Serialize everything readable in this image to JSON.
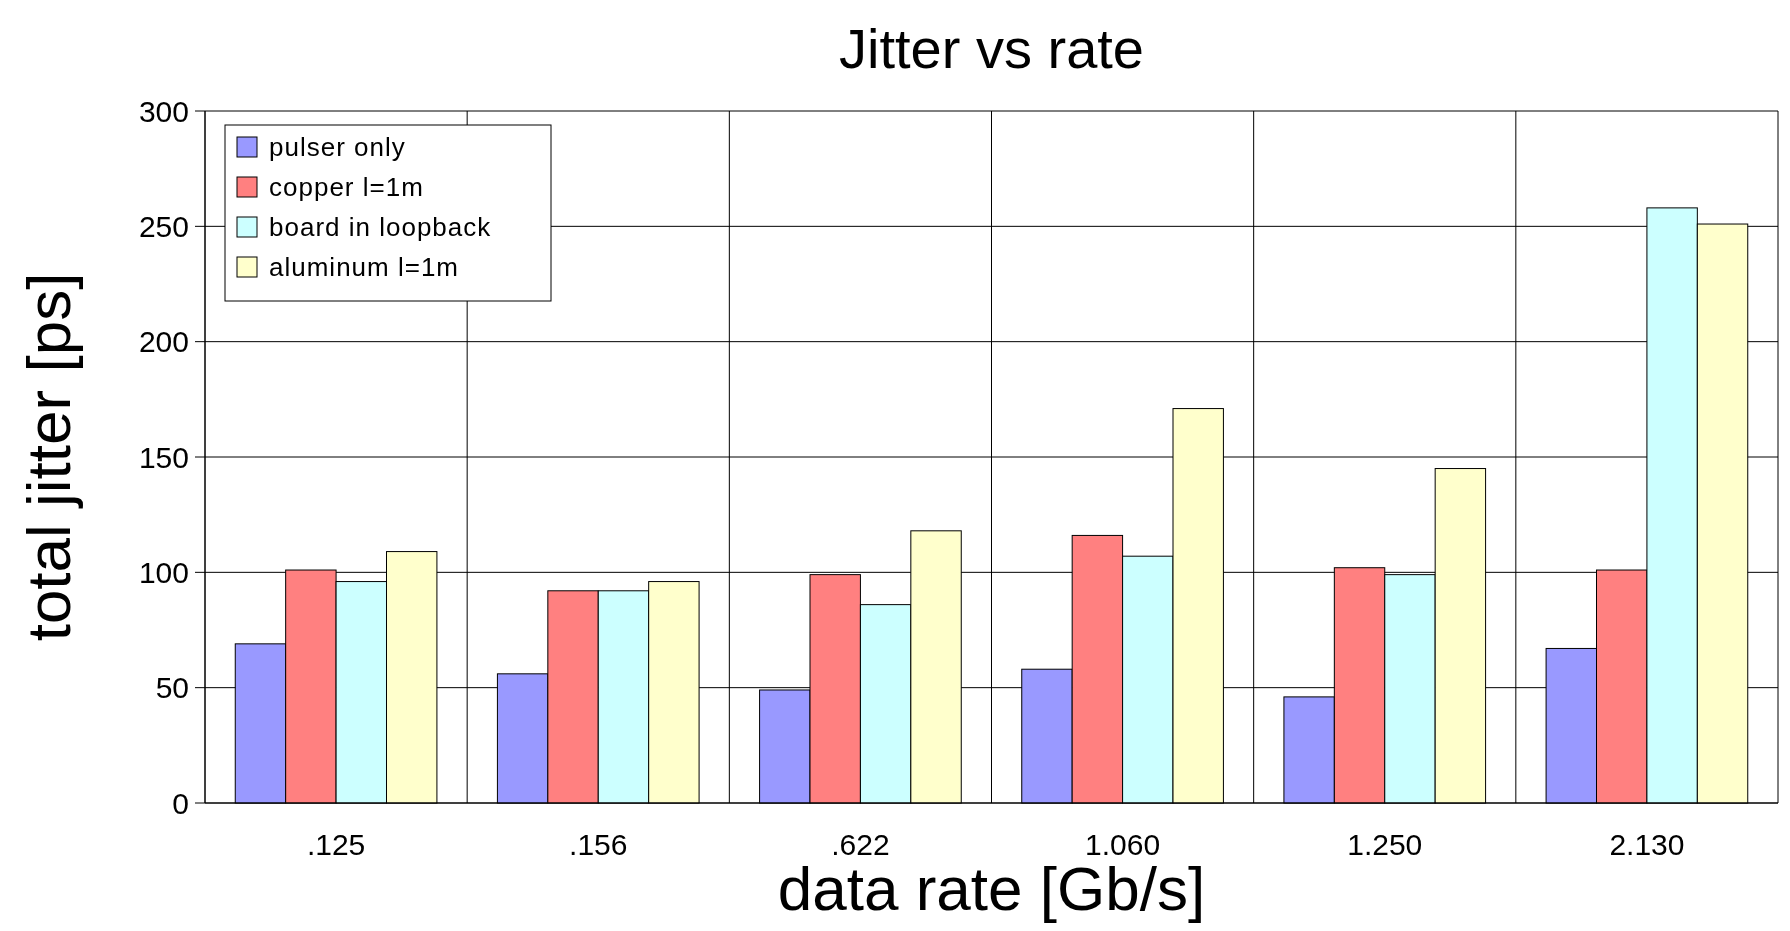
{
  "chart_data": {
    "type": "bar",
    "title": "Jitter vs rate",
    "xlabel": "data rate [Gb/s]",
    "ylabel": "total jitter [ps]",
    "categories": [
      ".125",
      ".156",
      ".622",
      "1.060",
      "1.250",
      "2.130"
    ],
    "series": [
      {
        "name": "pulser only",
        "color": "#9999ff",
        "values": [
          69,
          56,
          49,
          58,
          46,
          67
        ]
      },
      {
        "name": "copper l=1m",
        "color": "#ff8080",
        "values": [
          101,
          92,
          99,
          116,
          102,
          101
        ]
      },
      {
        "name": "board in loopback",
        "color": "#ccffff",
        "values": [
          96,
          92,
          86,
          107,
          99,
          258
        ]
      },
      {
        "name": "aluminum l=1m",
        "color": "#ffffcc",
        "values": [
          109,
          96,
          118,
          171,
          145,
          251
        ]
      }
    ],
    "ylim": [
      0,
      300
    ],
    "yticks": [
      0,
      50,
      100,
      150,
      200,
      250,
      300
    ],
    "grid": true,
    "legend": "top left"
  }
}
